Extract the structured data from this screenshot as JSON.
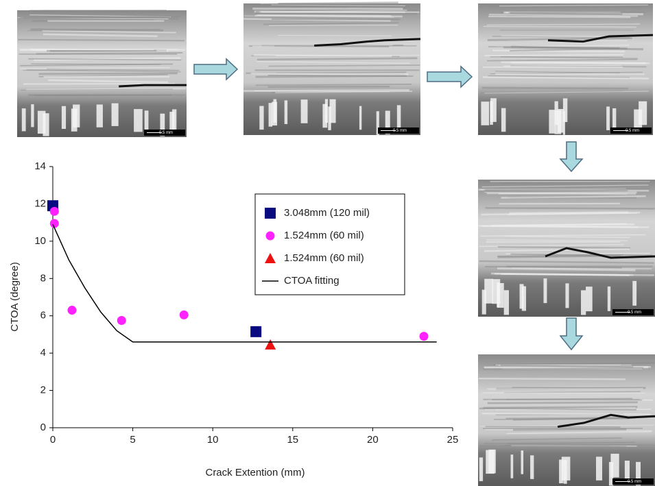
{
  "chart_data": {
    "type": "scatter",
    "x_label": "Crack Extention (mm)",
    "y_label": "CTOA (degree)",
    "xlim": [
      0,
      25
    ],
    "xticks": [
      0,
      5,
      10,
      15,
      20,
      25
    ],
    "ylim": [
      0,
      14
    ],
    "yticks": [
      0,
      2,
      4,
      6,
      8,
      10,
      12,
      14
    ],
    "series": [
      {
        "name": "3.048mm (120 mil)",
        "marker": "square",
        "color": "#0a0a80",
        "x": [
          0,
          12.7
        ],
        "values": [
          11.9,
          5.15
        ]
      },
      {
        "name": "1.524mm (60 mil)",
        "marker": "circle",
        "color": "#ff22ff",
        "x": [
          0.1,
          0.1,
          1.2,
          4.3,
          8.2,
          23.2
        ],
        "values": [
          11.6,
          10.95,
          6.3,
          5.75,
          6.05,
          4.9
        ]
      },
      {
        "name": "1.524mm (60 mil)",
        "marker": "triangle",
        "color": "#ee1111",
        "x": [
          13.6
        ],
        "values": [
          4.45
        ]
      },
      {
        "name": "CTOA fitting",
        "marker": "line",
        "color": "#000000",
        "x": [
          0,
          1,
          2,
          3,
          4,
          5,
          24
        ],
        "values": [
          10.9,
          9,
          7.5,
          6.2,
          5.2,
          4.6,
          4.6
        ]
      }
    ]
  },
  "micrographs": [
    {
      "scale_label": "0.5 mm"
    },
    {
      "scale_label": "0.5 mm"
    },
    {
      "scale_label": "0.5 mm"
    },
    {
      "scale_label": "0.5 mm"
    },
    {
      "scale_label": "0.5 mm"
    }
  ]
}
